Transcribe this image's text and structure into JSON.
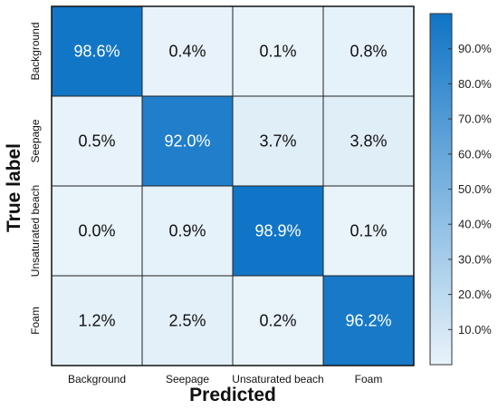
{
  "chart_data": {
    "type": "heatmap",
    "title": "",
    "xlabel": "Predicted",
    "ylabel": "True label",
    "x_categories": [
      "Background",
      "Seepage",
      "Unsaturated beach",
      "Foam"
    ],
    "y_categories": [
      "Background",
      "Seepage",
      "Unsaturated beach",
      "Foam"
    ],
    "values": [
      [
        98.6,
        0.4,
        0.1,
        0.8
      ],
      [
        0.5,
        92.0,
        3.7,
        3.8
      ],
      [
        0.0,
        0.9,
        98.9,
        0.1
      ],
      [
        1.2,
        2.5,
        0.2,
        96.2
      ]
    ],
    "cell_labels": [
      [
        "98.6%",
        "0.4%",
        "0.1%",
        "0.8%"
      ],
      [
        "0.5%",
        "92.0%",
        "3.7%",
        "3.8%"
      ],
      [
        "0.0%",
        "0.9%",
        "98.9%",
        "0.1%"
      ],
      [
        "1.2%",
        "2.5%",
        "0.2%",
        "96.2%"
      ]
    ],
    "colorbar": {
      "range": [
        0,
        100
      ],
      "ticks": [
        10,
        20,
        30,
        40,
        50,
        60,
        70,
        80,
        90
      ],
      "tick_labels": [
        "10.0%",
        "20.0%",
        "30.0%",
        "40.0%",
        "50.0%",
        "60.0%",
        "70.0%",
        "80.0%",
        "90.0%"
      ],
      "low_color": "#e8f3fa",
      "high_color": "#0f74c6"
    },
    "grid": true
  }
}
